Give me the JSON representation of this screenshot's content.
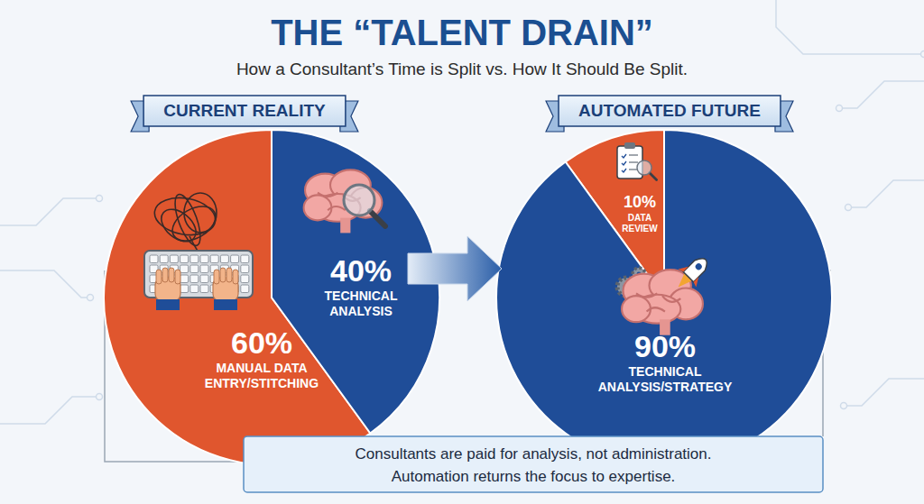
{
  "header": {
    "title": "THE “TALENT DRAIN”",
    "subtitle": "How a Consultant’s Time is Split vs. How It Should Be Split."
  },
  "chart_data": [
    {
      "type": "pie",
      "title": "CURRENT REALITY",
      "categories": [
        "MANUAL DATA ENTRY/STITCHING",
        "TECHNICAL ANALYSIS"
      ],
      "values": [
        60,
        40
      ],
      "value_labels": [
        "60%",
        "40%"
      ],
      "colors": [
        "#e0562e",
        "#1f4d98"
      ],
      "data_labels": true
    },
    {
      "type": "pie",
      "title": "AUTOMATED FUTURE",
      "categories": [
        "DATA REVIEW",
        "TECHNICAL ANALYSIS/STRATEGY"
      ],
      "values": [
        10,
        90
      ],
      "value_labels": [
        "10%",
        "90%"
      ],
      "colors": [
        "#e0562e",
        "#1f4d98"
      ],
      "data_labels": true
    }
  ],
  "footer": {
    "lines": [
      "Consultants are paid for analysis, not administration.",
      "Automation returns the focus to expertise."
    ]
  }
}
